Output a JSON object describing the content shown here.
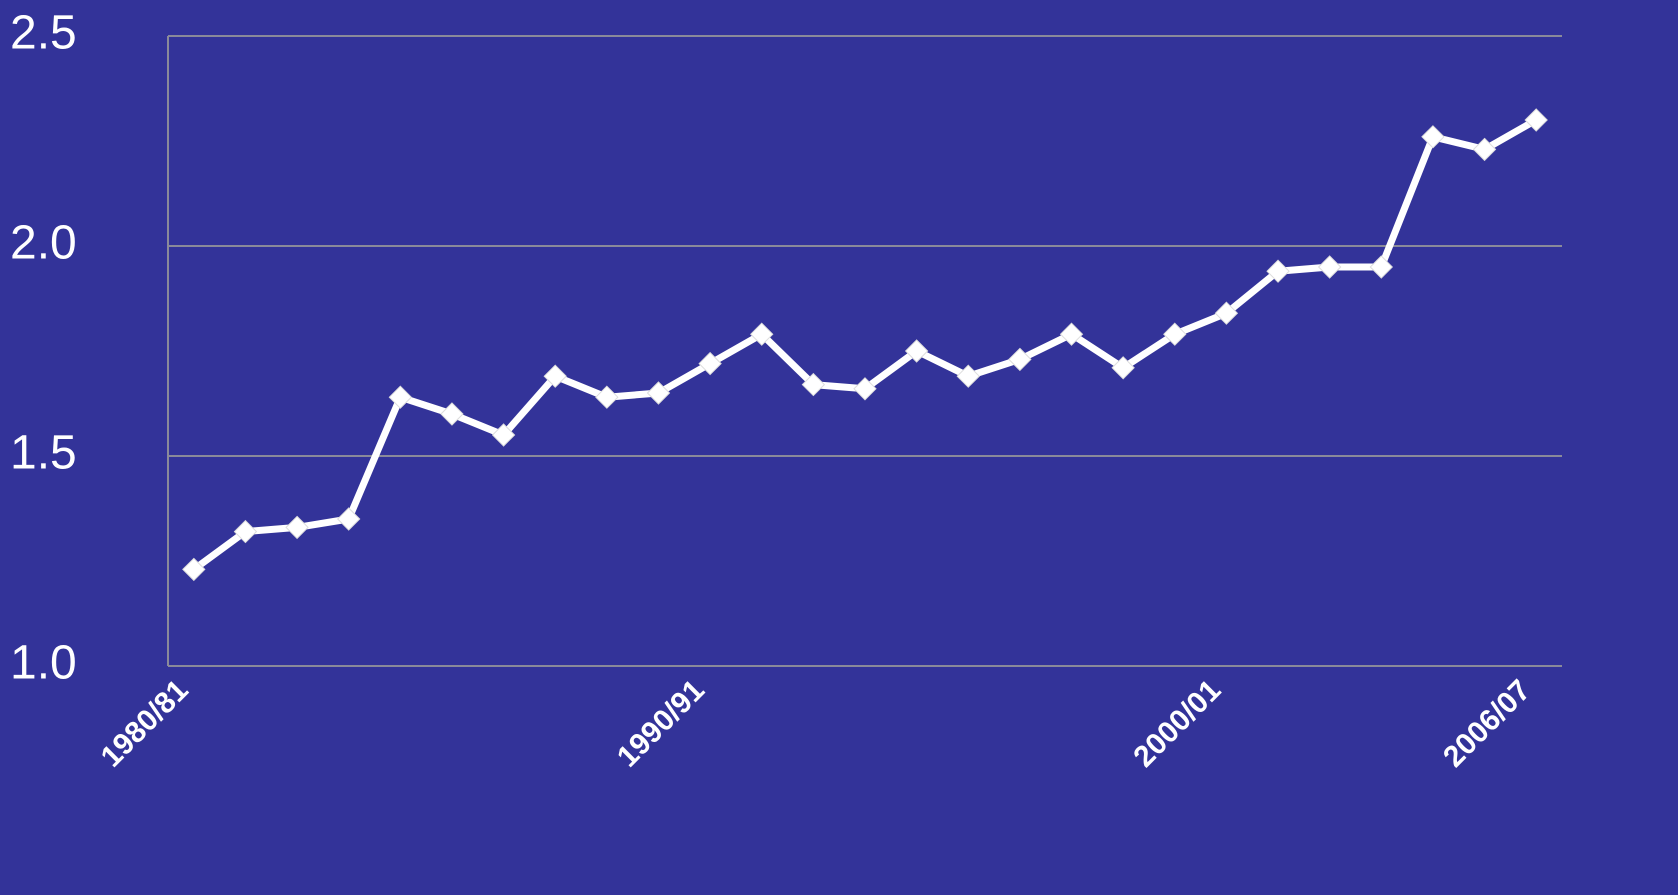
{
  "chart_data": {
    "type": "line",
    "categories": [
      "1980/81",
      null,
      null,
      null,
      null,
      null,
      null,
      null,
      null,
      null,
      "1990/91",
      null,
      null,
      null,
      null,
      null,
      null,
      null,
      null,
      null,
      "2000/01",
      null,
      null,
      null,
      null,
      null,
      "2006/07"
    ],
    "values": [
      1.23,
      1.32,
      1.33,
      1.35,
      1.64,
      1.6,
      1.55,
      1.69,
      1.64,
      1.65,
      1.72,
      1.79,
      1.67,
      1.66,
      1.75,
      1.69,
      1.73,
      1.79,
      1.71,
      1.79,
      1.84,
      1.94,
      1.95,
      1.95,
      2.26,
      2.23,
      2.3
    ],
    "color": "#ffffff",
    "ylim": [
      1.0,
      2.5
    ],
    "yticks": [
      {
        "value": 1.0,
        "label": "1.0"
      },
      {
        "value": 1.5,
        "label": "1.5"
      },
      {
        "value": 2.0,
        "label": "2.0"
      },
      {
        "value": 2.5,
        "label": "2.5"
      }
    ],
    "grid": true
  }
}
